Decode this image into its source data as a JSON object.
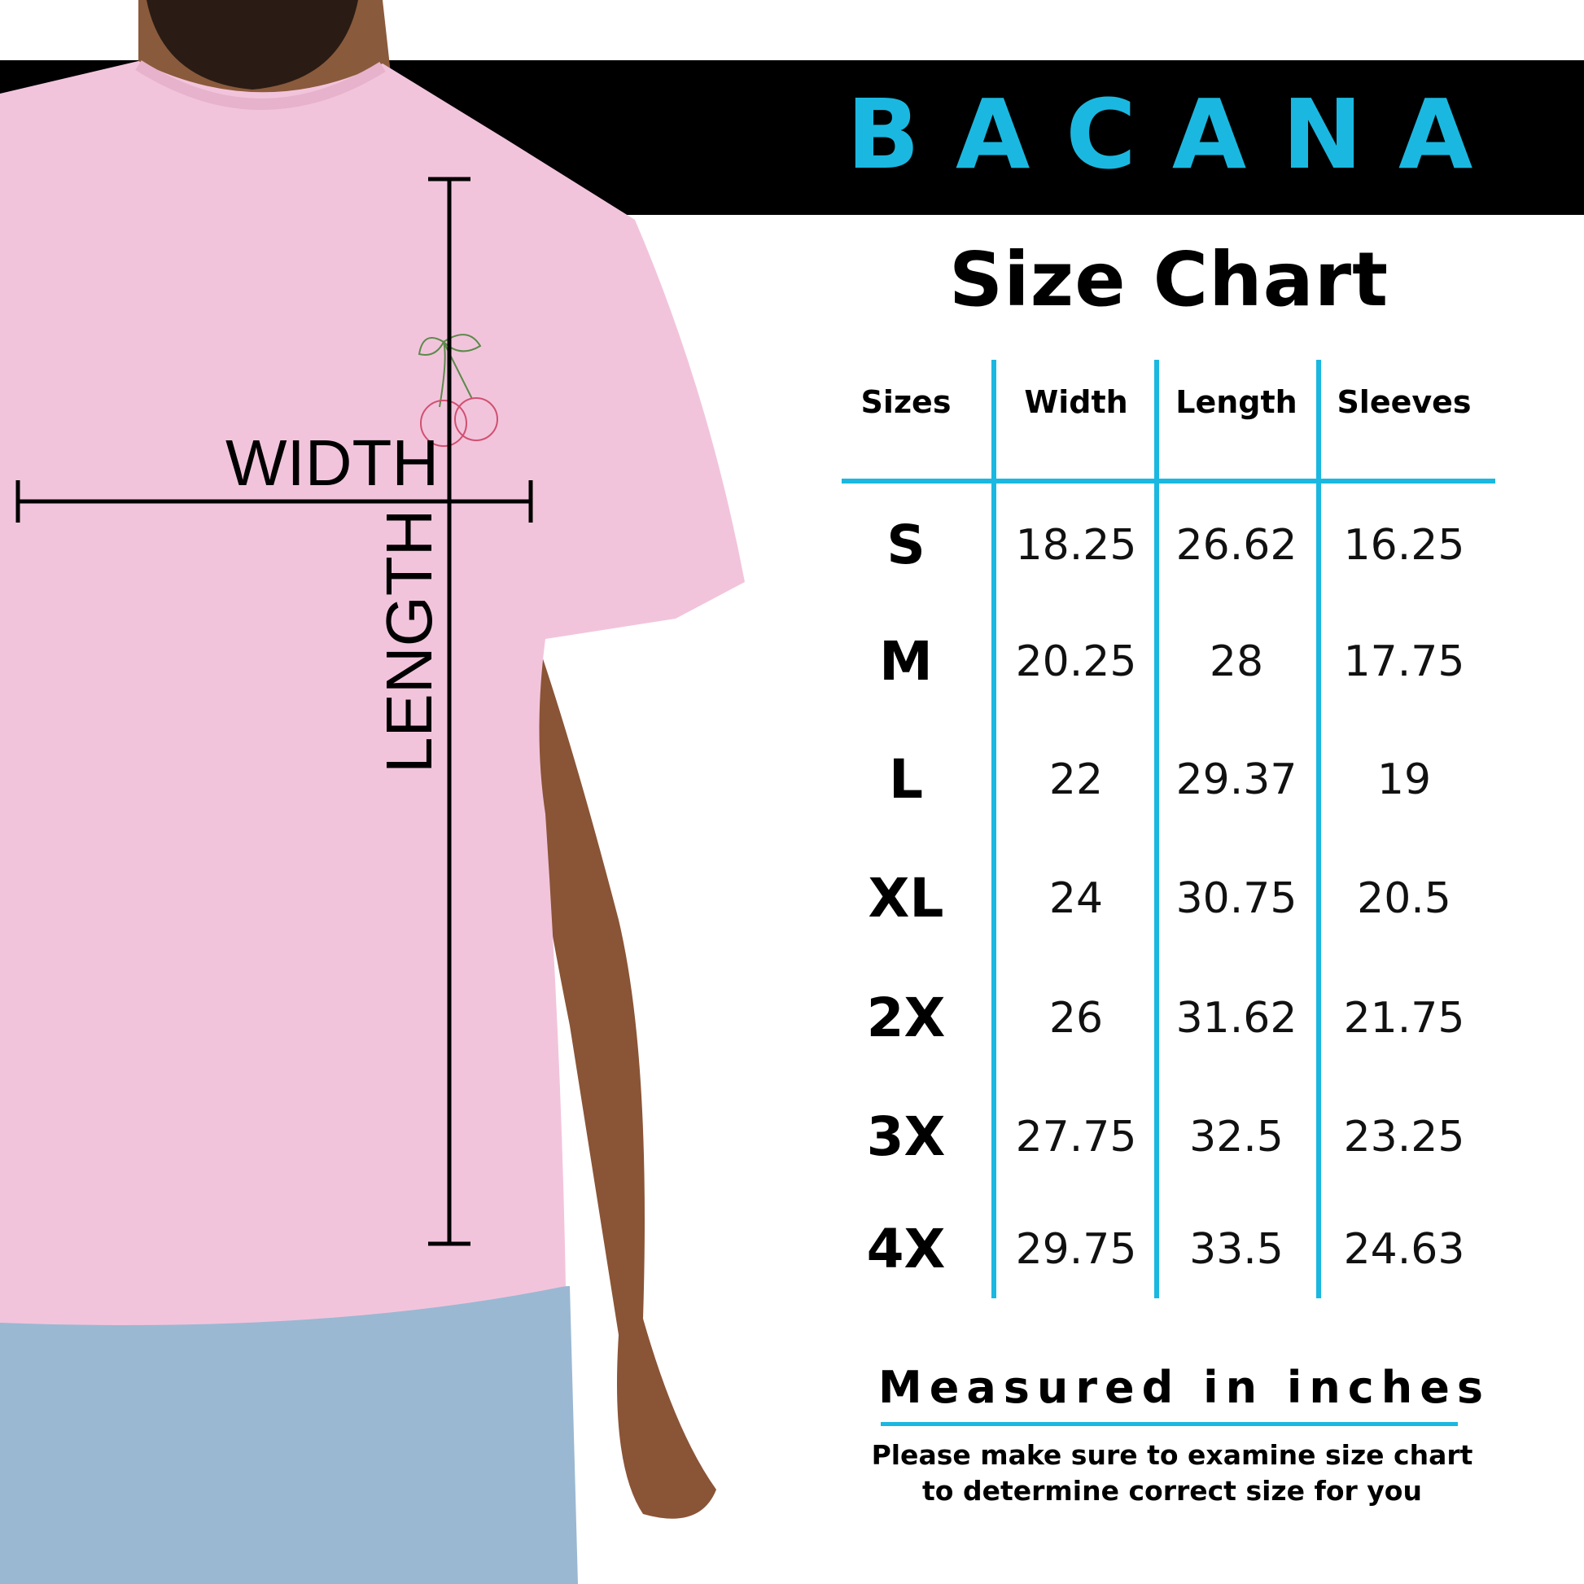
{
  "brand": {
    "logo_text": "BACANA",
    "color": "#1ab8e0"
  },
  "title": "Size Chart",
  "table": {
    "headers": [
      "Sizes",
      "Width",
      "Length",
      "Sleeves"
    ],
    "rows": [
      [
        "S",
        "18.25",
        "26.62",
        "16.25"
      ],
      [
        "M",
        "20.25",
        "28",
        "17.75"
      ],
      [
        "L",
        "22",
        "29.37",
        "19"
      ],
      [
        "XL",
        "24",
        "30.75",
        "20.5"
      ],
      [
        "2X",
        "26",
        "31.62",
        "21.75"
      ],
      [
        "3X",
        "27.75",
        "32.5",
        "23.25"
      ],
      [
        "4X",
        "29.75",
        "33.5",
        "24.63"
      ]
    ]
  },
  "units_note": "Measured in inches",
  "footer": {
    "line1": "Please make sure to examine size chart",
    "line2": "to determine correct size for you"
  },
  "photo_labels": {
    "width": "WIDTH",
    "length": "LENGTH"
  },
  "colors": {
    "accent": "#1ab8e0",
    "shirt": "#f2c4dc",
    "banner": "#000000"
  }
}
